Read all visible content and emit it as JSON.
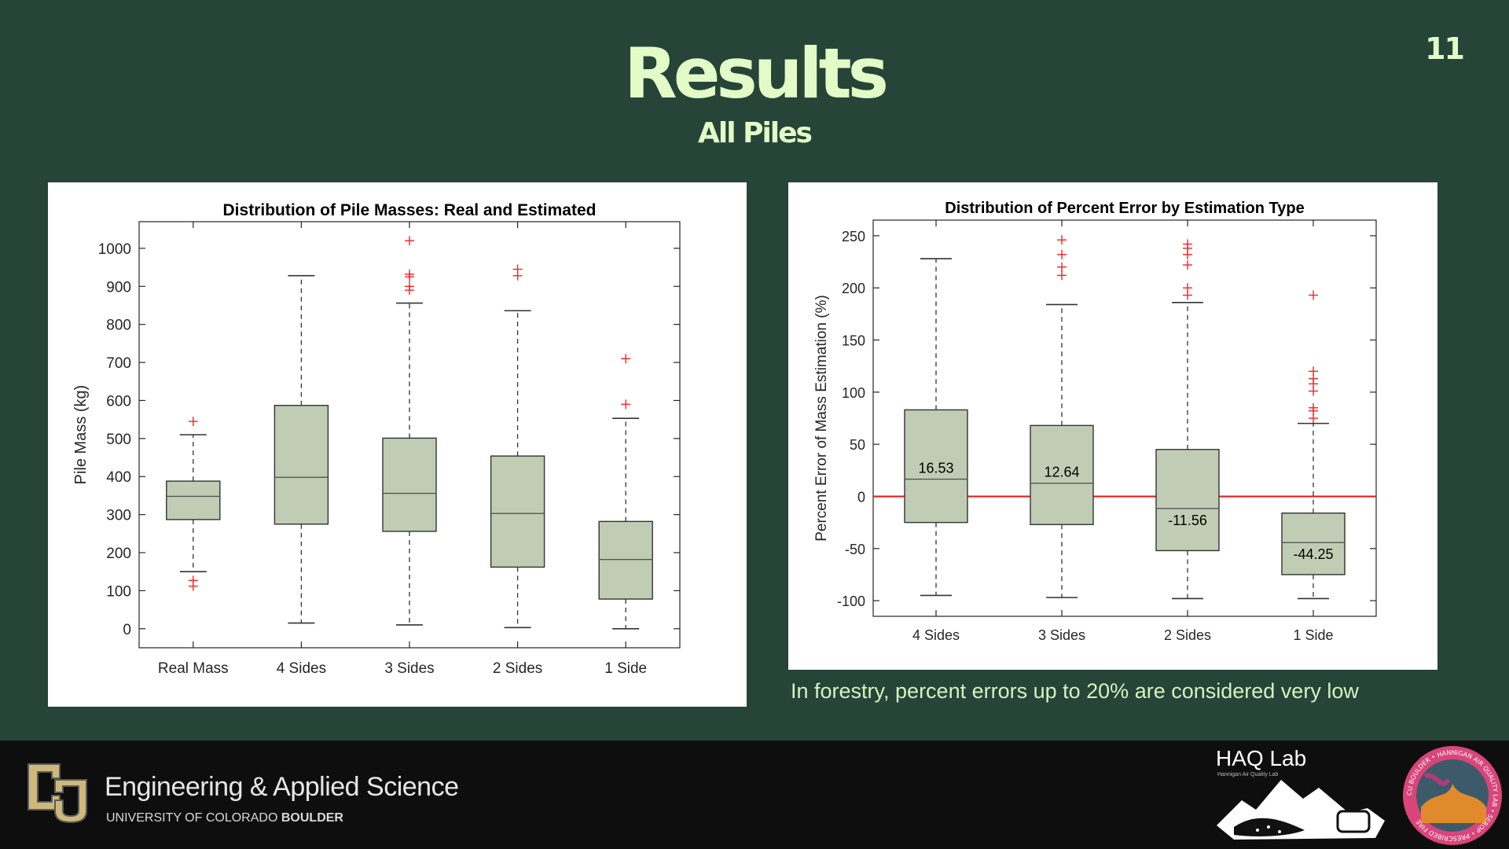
{
  "slide": {
    "title": "Results",
    "subtitle": "All Piles",
    "page_number": "11",
    "caption": "In forestry, percent errors up to 20% are considered very low"
  },
  "footer": {
    "college": "Engineering & Applied Science",
    "university_prefix": "UNIVERSITY OF COLORADO",
    "university_suffix": "BOULDER",
    "lab_name": "HAQ Lab",
    "lab_subtitle": "Hannigan Air Quality Lab",
    "seal_text": "CU BOULDER • HANNIGAN AIR QUALITY LAB • SEROP • PRESCRIBED FIRE"
  },
  "colors": {
    "background": "#264438",
    "title": "#e2fbc7",
    "box_fill": "#c0cdb4",
    "outlier": "#ff2020",
    "zero_line": "#ee1111",
    "footer": "#0e0e0e"
  },
  "chart_data": [
    {
      "type": "box",
      "title": "Distribution of Pile Masses: Real and Estimated",
      "xlabel": "",
      "ylabel": "Pile Mass (kg)",
      "ylim": [
        -50,
        1070
      ],
      "yticks": [
        0,
        100,
        200,
        300,
        400,
        500,
        600,
        700,
        800,
        900,
        1000
      ],
      "categories": [
        "Real Mass",
        "4 Sides",
        "3 Sides",
        "2 Sides",
        "1 Side"
      ],
      "boxes": [
        {
          "whisker_low": 150,
          "q1": 287,
          "median": 348,
          "q3": 388,
          "whisker_high": 510,
          "outliers": [
            112,
            127,
            545
          ]
        },
        {
          "whisker_low": 15,
          "q1": 275,
          "median": 398,
          "q3": 587,
          "whisker_high": 928,
          "outliers": []
        },
        {
          "whisker_low": 10,
          "q1": 256,
          "median": 356,
          "q3": 501,
          "whisker_high": 856,
          "outliers": [
            890,
            900,
            925,
            932,
            1020
          ]
        },
        {
          "whisker_low": 3,
          "q1": 162,
          "median": 303,
          "q3": 454,
          "whisker_high": 836,
          "outliers": [
            928,
            945
          ]
        },
        {
          "whisker_low": 0,
          "q1": 78,
          "median": 182,
          "q3": 282,
          "whisker_high": 553,
          "outliers": [
            590,
            710
          ]
        }
      ],
      "grid": false,
      "legend": "none"
    },
    {
      "type": "box",
      "title": "Distribution of Percent Error by Estimation Type",
      "xlabel": "",
      "ylabel": "Percent Error of Mass Estimation (%)",
      "ylim": [
        -115,
        265
      ],
      "yticks": [
        -100,
        -50,
        0,
        50,
        100,
        150,
        200,
        250
      ],
      "categories": [
        "4 Sides",
        "3 Sides",
        "2 Sides",
        "1 Side"
      ],
      "reference_line": 0,
      "boxes": [
        {
          "whisker_low": -95,
          "q1": -25,
          "median": 16.53,
          "q3": 83,
          "whisker_high": 228,
          "outliers": [],
          "label": "16.53"
        },
        {
          "whisker_low": -97,
          "q1": -27,
          "median": 12.64,
          "q3": 68,
          "whisker_high": 184,
          "outliers": [
            212,
            220,
            232,
            246
          ],
          "label": "12.64"
        },
        {
          "whisker_low": -98,
          "q1": -52,
          "median": -11.56,
          "q3": 45,
          "whisker_high": 186,
          "outliers": [
            193,
            200,
            222,
            232,
            238,
            242
          ],
          "label": "-11.56"
        },
        {
          "whisker_low": -98,
          "q1": -75,
          "median": -44.25,
          "q3": -16,
          "whisker_high": 70,
          "outliers": [
            75,
            82,
            85,
            101,
            108,
            113,
            120,
            193
          ],
          "label": "-44.25"
        }
      ],
      "grid": false,
      "legend": "none"
    }
  ]
}
